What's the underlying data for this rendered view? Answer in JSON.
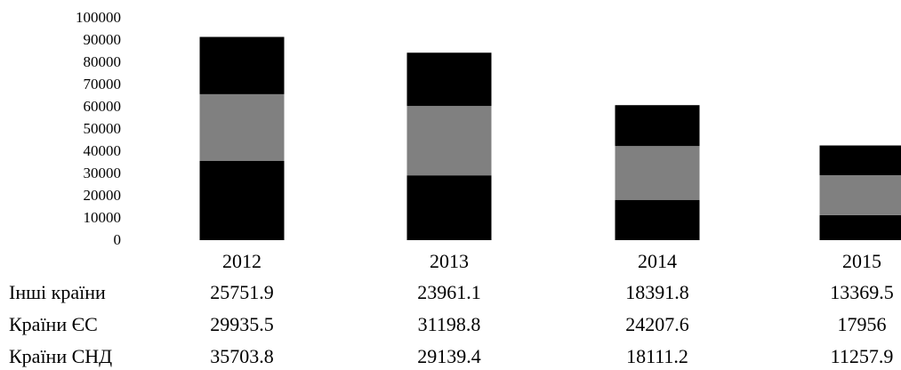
{
  "chart_data": {
    "type": "bar",
    "stacked": true,
    "categories": [
      "2012",
      "2013",
      "2014",
      "2015"
    ],
    "series": [
      {
        "name": "Країни СНД",
        "values": [
          35703.8,
          29139.4,
          18111.2,
          11257.9
        ],
        "color": "#000000"
      },
      {
        "name": "Країни ЄС",
        "values": [
          29935.5,
          31198.8,
          24207.6,
          17956
        ],
        "color": "#808080"
      },
      {
        "name": "Інші країни",
        "values": [
          25751.9,
          23961.1,
          18391.8,
          13369.5
        ],
        "color": "#000000"
      }
    ],
    "table_values": [
      [
        "25751.9",
        "23961.1",
        "18391.8",
        "13369.5"
      ],
      [
        "29935.5",
        "31198.8",
        "24207.6",
        "17956"
      ],
      [
        "35703.8",
        "29139.4",
        "18111.2",
        "11257.9"
      ]
    ],
    "table_row_labels": [
      "Інші країни",
      "Країни ЄС",
      "Країни СНД"
    ],
    "yticks": [
      "0",
      "10000",
      "20000",
      "30000",
      "40000",
      "50000",
      "60000",
      "70000",
      "80000",
      "90000",
      "100000"
    ],
    "ylim": [
      0,
      100000
    ],
    "grid": false,
    "legend": "data-table-below"
  }
}
